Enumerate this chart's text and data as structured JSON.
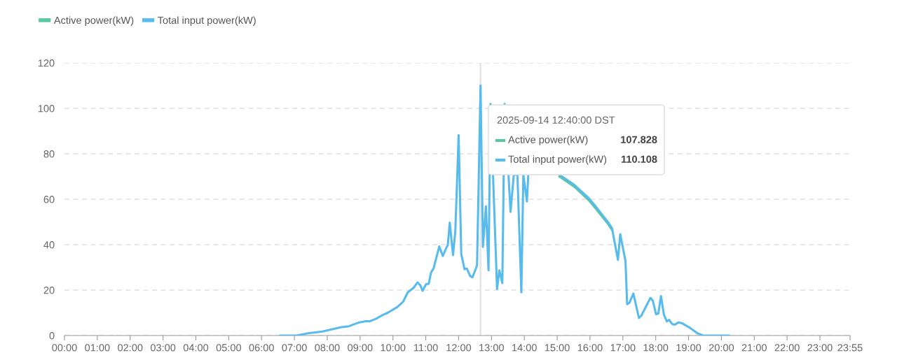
{
  "chart_data": {
    "type": "line",
    "xlim": [
      0,
      23.9167
    ],
    "xticks": [
      {
        "value": 0,
        "label": "00:00"
      },
      {
        "value": 1,
        "label": "01:00"
      },
      {
        "value": 2,
        "label": "02:00"
      },
      {
        "value": 3,
        "label": "03:00"
      },
      {
        "value": 4,
        "label": "04:00"
      },
      {
        "value": 5,
        "label": "05:00"
      },
      {
        "value": 6,
        "label": "06:00"
      },
      {
        "value": 7,
        "label": "07:00"
      },
      {
        "value": 8,
        "label": "08:00"
      },
      {
        "value": 9,
        "label": "09:00"
      },
      {
        "value": 10,
        "label": "10:00"
      },
      {
        "value": 11,
        "label": "11:00"
      },
      {
        "value": 12,
        "label": "12:00"
      },
      {
        "value": 13,
        "label": "13:00"
      },
      {
        "value": 14,
        "label": "14:00"
      },
      {
        "value": 15,
        "label": "15:00"
      },
      {
        "value": 16,
        "label": "16:00"
      },
      {
        "value": 17,
        "label": "17:00"
      },
      {
        "value": 18,
        "label": "18:00"
      },
      {
        "value": 19,
        "label": "19:00"
      },
      {
        "value": 20,
        "label": "20:00"
      },
      {
        "value": 21,
        "label": "21:00"
      },
      {
        "value": 22,
        "label": "22:00"
      },
      {
        "value": 23,
        "label": "23:00"
      },
      {
        "value": 23.9167,
        "label": "23:55"
      }
    ],
    "ylim": [
      0,
      120
    ],
    "yticks": [
      0,
      20,
      40,
      60,
      80,
      100,
      120
    ],
    "grid": "y",
    "legend": "top left",
    "marker": "none",
    "line_style": "solid",
    "series": [
      {
        "name": "Active power(kW)",
        "color": "#5cc6a0",
        "x": [
          15.07,
          15.53,
          15.96,
          16.17,
          16.56,
          16.67
        ],
        "values": [
          70,
          65.4,
          59.6,
          56,
          48.9,
          46.5
        ]
      },
      {
        "name": "Total input power(kW)",
        "color": "#58bbee",
        "x": [
          6.57,
          7.06,
          7.42,
          7.85,
          8.43,
          8.66,
          8.98,
          9.2,
          9.28,
          9.49,
          9.71,
          9.84,
          10.13,
          10.31,
          10.45,
          10.63,
          10.75,
          10.84,
          10.9,
          11.01,
          11.09,
          11.16,
          11.24,
          11.41,
          11.52,
          11.63,
          11.67,
          11.73,
          11.83,
          11.9,
          12.0,
          12.08,
          12.18,
          12.25,
          12.35,
          12.42,
          12.56,
          12.667,
          12.74,
          12.83,
          12.91,
          12.97,
          13.17,
          13.24,
          13.33,
          13.4,
          13.58,
          13.68,
          13.79,
          13.91,
          13.97,
          14.08,
          14.12,
          14.5,
          15.07,
          15.53,
          15.96,
          16.17,
          16.56,
          16.67,
          16.85,
          16.92,
          17.08,
          17.13,
          17.2,
          17.32,
          17.49,
          17.56,
          17.84,
          17.91,
          18.01,
          18.08,
          18.16,
          18.25,
          18.34,
          18.41,
          18.5,
          18.58,
          18.7,
          18.8,
          19.02,
          19.27,
          19.44,
          20.23
        ],
        "values": [
          0,
          0,
          1,
          1.8,
          3.7,
          4.1,
          5.8,
          6.4,
          6.2,
          7.4,
          9.2,
          10,
          12.5,
          14.9,
          19,
          21,
          23.4,
          22,
          19.7,
          22.6,
          22.8,
          27.7,
          29.7,
          39.2,
          35,
          38.8,
          39.8,
          49.7,
          35.4,
          46,
          88.2,
          35.9,
          29.2,
          29.5,
          26.2,
          25.6,
          30.8,
          110.1,
          39,
          56.9,
          28.7,
          102,
          20.5,
          28.7,
          23.1,
          102,
          54.4,
          70.8,
          70.8,
          19,
          70.8,
          59,
          70.8,
          null,
          70.8,
          66.2,
          60.5,
          56.9,
          49.7,
          47.2,
          33.3,
          44.6,
          32.8,
          13.8,
          14.4,
          18.5,
          7.7,
          8.7,
          16.6,
          15.4,
          9.4,
          9.7,
          17.4,
          9.2,
          6.2,
          6.9,
          5.1,
          4.8,
          5.8,
          5.4,
          3.6,
          1,
          0,
          0
        ]
      }
    ],
    "ref_lines": [
      {
        "axis": "x",
        "value": 12.667,
        "color": "#e6e6e6"
      }
    ],
    "annotations": [
      "2025-09-14 12:40:00 DST",
      "Active power(kW)",
      "107.828",
      "Total input power(kW)",
      "110.108"
    ]
  }
}
